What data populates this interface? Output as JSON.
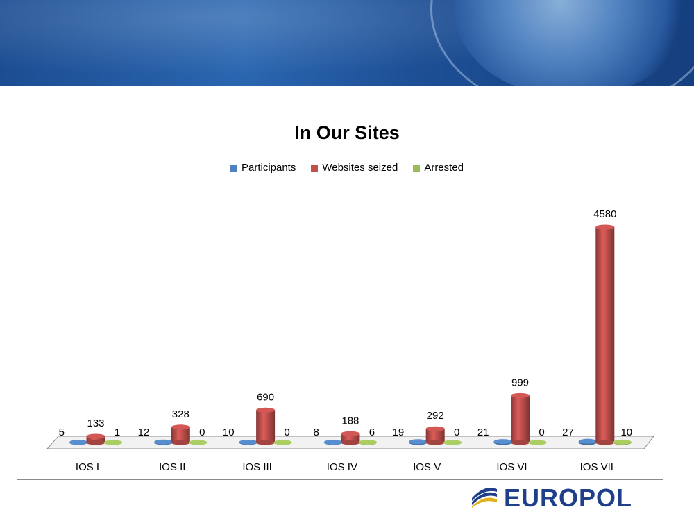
{
  "logo_text": "EUROPOL",
  "chart_data": {
    "type": "bar",
    "title": "In Our Sites",
    "categories": [
      "IOS I",
      "IOS II",
      "IOS III",
      "IOS IV",
      "IOS V",
      "IOS VI",
      "IOS VII"
    ],
    "series": [
      {
        "name": "Participants",
        "color": "#4f81bd",
        "values": [
          5,
          12,
          10,
          8,
          19,
          21,
          27
        ]
      },
      {
        "name": "Websites seized",
        "color": "#c0504d",
        "values": [
          133,
          328,
          690,
          188,
          292,
          999,
          4580
        ]
      },
      {
        "name": "Arrested",
        "color": "#9bbb59",
        "values": [
          1,
          0,
          0,
          6,
          0,
          0,
          10
        ]
      }
    ],
    "ylim": [
      0,
      4580
    ],
    "legend_position": "top",
    "grid": false,
    "style": "3d-cylinder",
    "data_labels": true
  }
}
